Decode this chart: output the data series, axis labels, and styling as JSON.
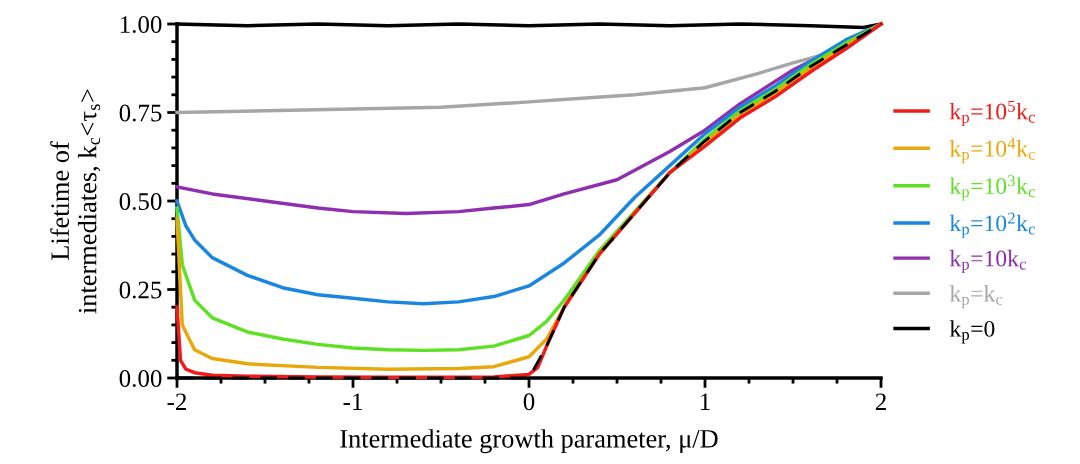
{
  "chart_data": {
    "type": "line",
    "xlabel": "Intermediate growth parameter, μ/D",
    "ylabel": "Lifetime of\nintermediates, k$_{c}$<τ$_{s}$>",
    "xlim": [
      -2,
      2
    ],
    "ylim": [
      0,
      1
    ],
    "xticks": [
      -2,
      {
        "value": -1.75,
        "label": null
      },
      {
        "value": -1.5,
        "label": null
      },
      {
        "value": -1.25,
        "label": null
      },
      -1,
      {
        "value": -0.75,
        "label": null
      },
      {
        "value": -0.5,
        "label": null
      },
      {
        "value": -0.25,
        "label": null
      },
      0,
      {
        "value": 0.25,
        "label": null
      },
      {
        "value": 0.5,
        "label": null
      },
      {
        "value": 0.75,
        "label": null
      },
      1,
      {
        "value": 1.25,
        "label": null
      },
      {
        "value": 1.5,
        "label": null
      },
      {
        "value": 1.75,
        "label": null
      },
      2
    ],
    "yticks": [
      {
        "value": 0,
        "label": "0.00"
      },
      {
        "value": 0.05,
        "label": null
      },
      {
        "value": 0.1,
        "label": null
      },
      {
        "value": 0.15,
        "label": null
      },
      {
        "value": 0.2,
        "label": null
      },
      0.25,
      {
        "value": 0.3,
        "label": null
      },
      {
        "value": 0.35,
        "label": null
      },
      {
        "value": 0.4,
        "label": null
      },
      {
        "value": 0.45,
        "label": null
      },
      {
        "value": 0.5,
        "label": "0.50"
      },
      {
        "value": 0.55,
        "label": null
      },
      {
        "value": 0.6,
        "label": null
      },
      {
        "value": 0.65,
        "label": null
      },
      {
        "value": 0.7,
        "label": null
      },
      0.75,
      {
        "value": 0.8,
        "label": null
      },
      {
        "value": 0.85,
        "label": null
      },
      {
        "value": 0.9,
        "label": null
      },
      {
        "value": 0.95,
        "label": null
      },
      {
        "value": 1,
        "label": "1.00"
      }
    ],
    "grid": false,
    "legend": "right",
    "marker": "none",
    "series": [
      {
        "name": "k$_{p}$=10$^{5}$k$_{c}$",
        "color": "#f01c1c",
        "x": [
          -2,
          -1.98,
          -1.95,
          -1.9,
          -1.8,
          -1.6,
          -1.2,
          -0.8,
          -0.4,
          -0.2,
          0,
          0.05,
          0.1,
          0.2,
          0.4,
          0.6,
          0.8,
          1,
          1.2,
          1.4,
          1.6,
          1.8,
          2
        ],
        "values": [
          0.2,
          0.05,
          0.025,
          0.015,
          0.008,
          0.005,
          0.003,
          0.002,
          0.002,
          0.003,
          0.01,
          0.03,
          0.09,
          0.2,
          0.35,
          0.465,
          0.58,
          0.655,
          0.735,
          0.795,
          0.865,
          0.93,
          1.0
        ]
      },
      {
        "name": "k$_{p}$=10$^{4}$k$_{c}$",
        "color": "#e8a80c",
        "x": [
          -2,
          -1.97,
          -1.9,
          -1.8,
          -1.6,
          -1.2,
          -0.8,
          -0.4,
          -0.2,
          0,
          0.1,
          0.2,
          0.4,
          0.6,
          0.8,
          1,
          1.2,
          1.4,
          1.6,
          1.8,
          2
        ],
        "values": [
          0.45,
          0.15,
          0.08,
          0.055,
          0.04,
          0.03,
          0.025,
          0.027,
          0.032,
          0.06,
          0.11,
          0.2,
          0.35,
          0.465,
          0.58,
          0.665,
          0.745,
          0.805,
          0.875,
          0.938,
          1.0
        ]
      },
      {
        "name": "k$_{p}$=10$^{3}$k$_{c}$",
        "color": "#5ee024",
        "x": [
          -2,
          -1.97,
          -1.9,
          -1.8,
          -1.6,
          -1.4,
          -1.2,
          -1,
          -0.8,
          -0.6,
          -0.4,
          -0.2,
          0,
          0.1,
          0.2,
          0.4,
          0.6,
          0.8,
          1,
          1.2,
          1.4,
          1.6,
          1.8,
          2
        ],
        "values": [
          0.48,
          0.32,
          0.22,
          0.17,
          0.13,
          0.11,
          0.095,
          0.085,
          0.08,
          0.078,
          0.08,
          0.09,
          0.12,
          0.16,
          0.22,
          0.36,
          0.47,
          0.58,
          0.675,
          0.755,
          0.815,
          0.885,
          0.946,
          1.0
        ]
      },
      {
        "name": "k$_{p}$=10$^{2}$k$_{c}$",
        "color": "#1a86e0",
        "x": [
          -2,
          -1.95,
          -1.9,
          -1.8,
          -1.6,
          -1.4,
          -1.2,
          -1,
          -0.8,
          -0.6,
          -0.4,
          -0.2,
          0,
          0.2,
          0.4,
          0.6,
          0.8,
          1,
          1.2,
          1.4,
          1.6,
          1.8,
          2
        ],
        "values": [
          0.5,
          0.43,
          0.39,
          0.34,
          0.29,
          0.255,
          0.235,
          0.225,
          0.215,
          0.21,
          0.215,
          0.23,
          0.26,
          0.325,
          0.404,
          0.51,
          0.6,
          0.69,
          0.765,
          0.825,
          0.895,
          0.955,
          1.0
        ]
      },
      {
        "name": "k$_{p}$=10k$_{c}$",
        "color": "#8e2fb0",
        "x": [
          -2,
          -1.8,
          -1.5,
          -1.2,
          -1,
          -0.7,
          -0.4,
          -0.2,
          0,
          0.2,
          0.5,
          0.8,
          1,
          1.2,
          1.5,
          1.8,
          2
        ],
        "values": [
          0.54,
          0.52,
          0.5,
          0.48,
          0.47,
          0.465,
          0.47,
          0.48,
          0.49,
          0.52,
          0.56,
          0.64,
          0.7,
          0.775,
          0.87,
          0.945,
          1.0
        ]
      },
      {
        "name": "k$_{p}$=k$_{c}$",
        "color": "#a6a6a6",
        "x": [
          -2,
          -1.5,
          -1,
          -0.5,
          0,
          0.3,
          0.6,
          1,
          1.3,
          1.5,
          1.8,
          2
        ],
        "values": [
          0.75,
          0.755,
          0.76,
          0.765,
          0.78,
          0.79,
          0.8,
          0.82,
          0.86,
          0.89,
          0.93,
          1.0
        ]
      },
      {
        "name": "k$_{p}$=0",
        "color": "#000000",
        "x": [
          -2,
          -1.6,
          -1.2,
          -0.8,
          -0.4,
          0,
          0.4,
          0.8,
          1.2,
          1.6,
          1.9,
          2
        ],
        "values": [
          1.0,
          0.995,
          1.0,
          0.995,
          1.0,
          0.995,
          1.0,
          0.995,
          1.0,
          0.995,
          0.99,
          1.0
        ]
      },
      {
        "color": "#000000",
        "line_style": "dashed",
        "x": [
          -2,
          0,
          0.1,
          0.2,
          0.4,
          0.6,
          0.8,
          1,
          1.2,
          1.4,
          1.6,
          1.8,
          2
        ],
        "values": [
          0,
          0,
          0.09,
          0.2,
          0.35,
          0.465,
          0.58,
          0.67,
          0.75,
          0.81,
          0.88,
          0.94,
          1.0
        ]
      }
    ]
  }
}
